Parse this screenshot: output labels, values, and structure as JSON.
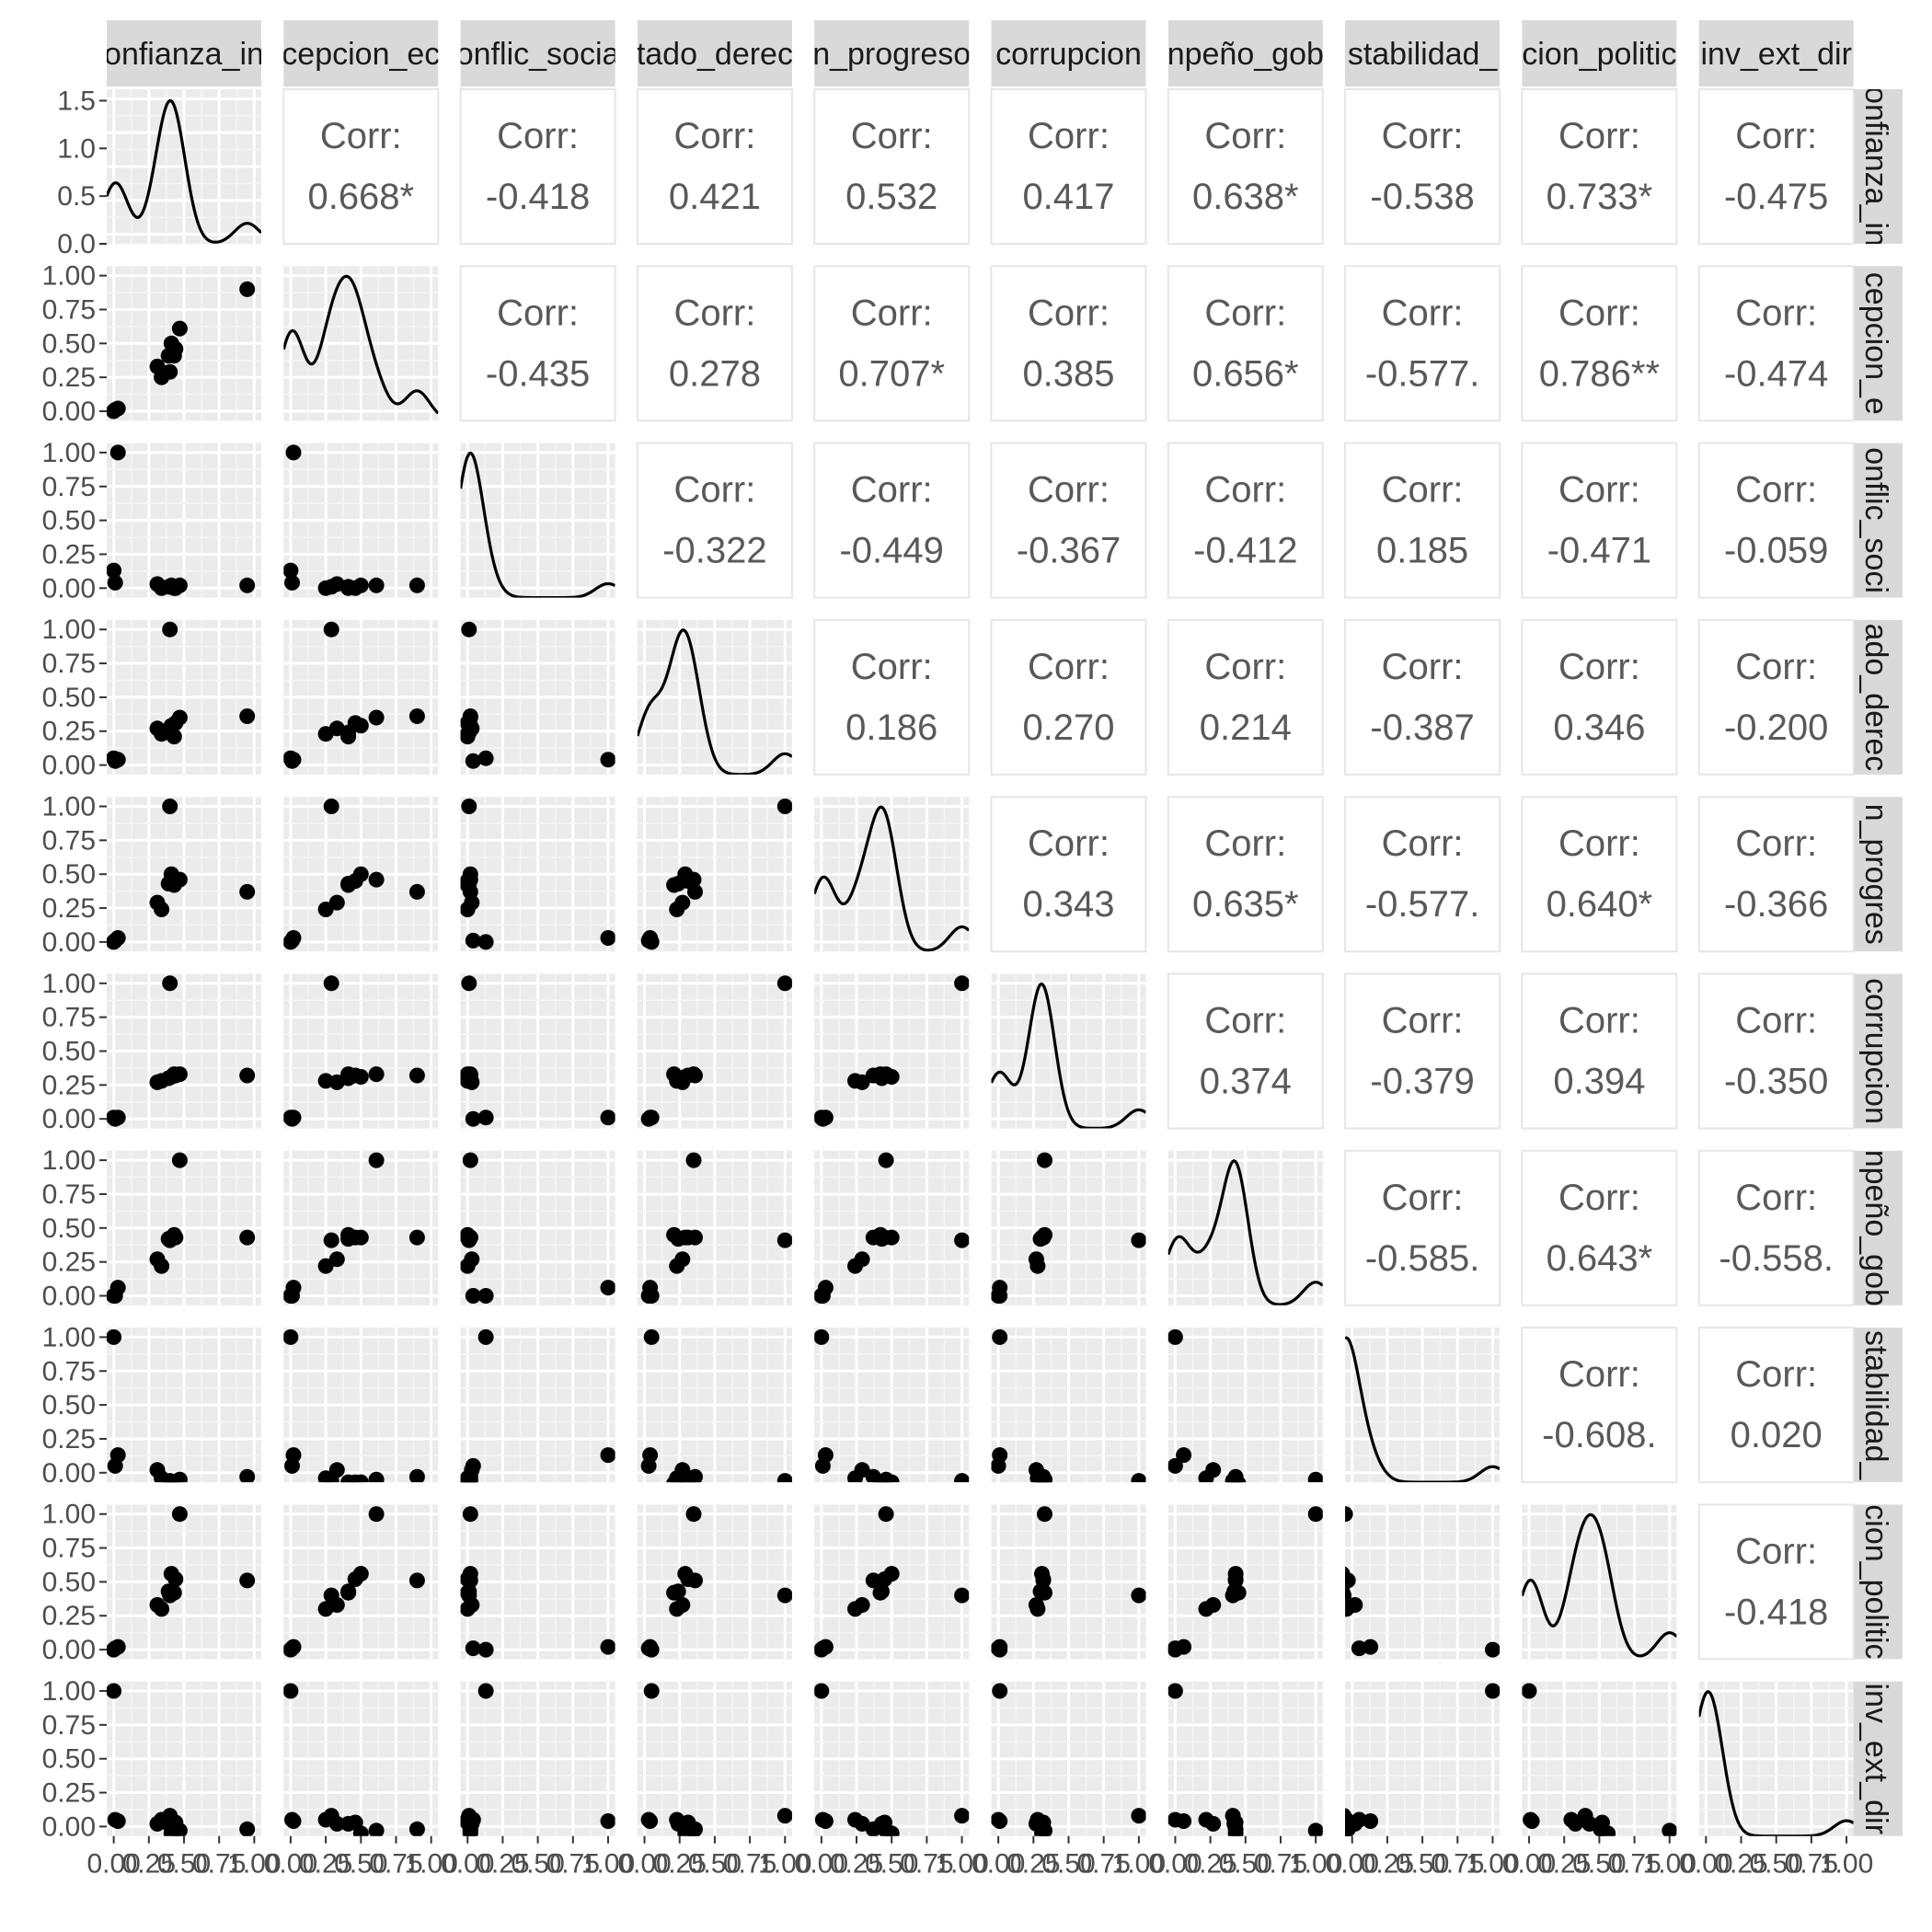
{
  "chart_data": {
    "type": "scatter-matrix",
    "title": "",
    "variables": [
      "confianza_in",
      "cepcion_ec",
      "conflic_socia",
      "tado_derec",
      "n_progreso",
      "corrupcion",
      "mpeño_gob",
      "stabilidad_",
      "cion_politic",
      "inv_ext_dir"
    ],
    "strip_labels_top": [
      "onfianza_in",
      "cepcion_ec",
      "onflic_socia",
      "tado_derec",
      "n_progreso",
      "corrupcion",
      "npeño_gob",
      "stabilidad_",
      "cion_politic",
      "inv_ext_dir"
    ],
    "strip_labels_right": [
      "onfianza_in",
      "cepcion_e",
      "onflic_soci",
      "ado_derec",
      "n_progres",
      "corrupcion",
      "npeño_gob",
      "stabilidad_",
      "cion_politic",
      "inv_ext_dir"
    ],
    "corr_label": "Corr:",
    "correlations": [
      [
        "",
        "0.668*",
        "-0.418",
        "0.421",
        "0.532",
        "0.417",
        "0.638*",
        "-0.538",
        "0.733*",
        "-0.475"
      ],
      [
        "",
        "",
        "-0.435",
        "0.278",
        "0.707*",
        "0.385",
        "0.656*",
        "-0.577.",
        "0.786**",
        "-0.474"
      ],
      [
        "",
        "",
        "",
        "-0.322",
        "-0.449",
        "-0.367",
        "-0.412",
        "0.185",
        "-0.471",
        "-0.059"
      ],
      [
        "",
        "",
        "",
        "",
        "0.186",
        "0.270",
        "0.214",
        "-0.387",
        "0.346",
        "-0.200"
      ],
      [
        "",
        "",
        "",
        "",
        "",
        "0.343",
        "0.635*",
        "-0.577.",
        "0.640*",
        "-0.366"
      ],
      [
        "",
        "",
        "",
        "",
        "",
        "",
        "0.374",
        "-0.379",
        "0.394",
        "-0.350"
      ],
      [
        "",
        "",
        "",
        "",
        "",
        "",
        "",
        "-0.585.",
        "0.643*",
        "-0.558."
      ],
      [
        "",
        "",
        "",
        "",
        "",
        "",
        "",
        "",
        "-0.608.",
        "0.020"
      ],
      [
        "",
        "",
        "",
        "",
        "",
        "",
        "",
        "",
        "",
        "-0.418"
      ],
      [
        "",
        "",
        "",
        "",
        "",
        "",
        "",
        "",
        "",
        ""
      ]
    ],
    "observations": [
      [
        0.0,
        0.0,
        0.13,
        0.05,
        0.0,
        0.01,
        0.0,
        1.0,
        0.0,
        1.0
      ],
      [
        0.01,
        0.01,
        0.04,
        0.03,
        0.01,
        0.0,
        0.0,
        0.05,
        0.01,
        0.05
      ],
      [
        0.03,
        0.02,
        1.0,
        0.04,
        0.03,
        0.01,
        0.06,
        0.13,
        0.02,
        0.04
      ],
      [
        0.31,
        0.33,
        0.03,
        0.27,
        0.29,
        0.27,
        0.27,
        0.02,
        0.33,
        0.02
      ],
      [
        0.34,
        0.25,
        0.0,
        0.23,
        0.24,
        0.28,
        0.22,
        -0.04,
        0.3,
        0.05
      ],
      [
        0.41,
        0.5,
        0.02,
        0.29,
        0.5,
        0.31,
        0.43,
        -0.07,
        0.56,
        -0.05
      ],
      [
        0.39,
        0.41,
        0.01,
        0.24,
        0.43,
        0.3,
        0.42,
        -0.07,
        0.43,
        0.02
      ],
      [
        0.44,
        0.46,
        0.0,
        0.31,
        0.45,
        0.32,
        0.43,
        -0.07,
        0.52,
        0.03
      ],
      [
        0.47,
        0.61,
        0.02,
        0.35,
        0.46,
        0.33,
        1.0,
        -0.05,
        1.0,
        -0.03
      ],
      [
        0.4,
        0.29,
        0.01,
        1.0,
        1.0,
        1.0,
        0.41,
        -0.06,
        0.4,
        0.08
      ],
      [
        0.95,
        0.9,
        0.02,
        0.36,
        0.37,
        0.32,
        0.43,
        -0.03,
        0.51,
        -0.02
      ],
      [
        0.43,
        0.41,
        0.0,
        0.21,
        0.42,
        0.33,
        0.45,
        -0.08,
        0.42,
        -0.13
      ]
    ],
    "y_ticks_first_row": [
      "0.0",
      "0.5",
      "1.0",
      "1.5"
    ],
    "y_ticks": [
      "0.00",
      "0.25",
      "0.50",
      "0.75",
      "1.00"
    ],
    "x_ticks": [
      "0.00",
      "0.25",
      "0.50",
      "0.75",
      "1.00"
    ],
    "xlim": [
      -0.05,
      1.05
    ],
    "ylim": [
      -0.07,
      1.07
    ],
    "density_ylim_first_row": [
      0,
      1.62
    ],
    "grid": true,
    "colors": {
      "panel_background": "#ebebeb",
      "grid_major": "#ffffff",
      "grid_minor": "#f5f5f5",
      "strip_background": "#d9d9d9",
      "point": "#000000",
      "line": "#000000",
      "corr_text": "#595959",
      "tick_text": "#4d4d4d",
      "panel_border": "#ebebeb"
    }
  }
}
